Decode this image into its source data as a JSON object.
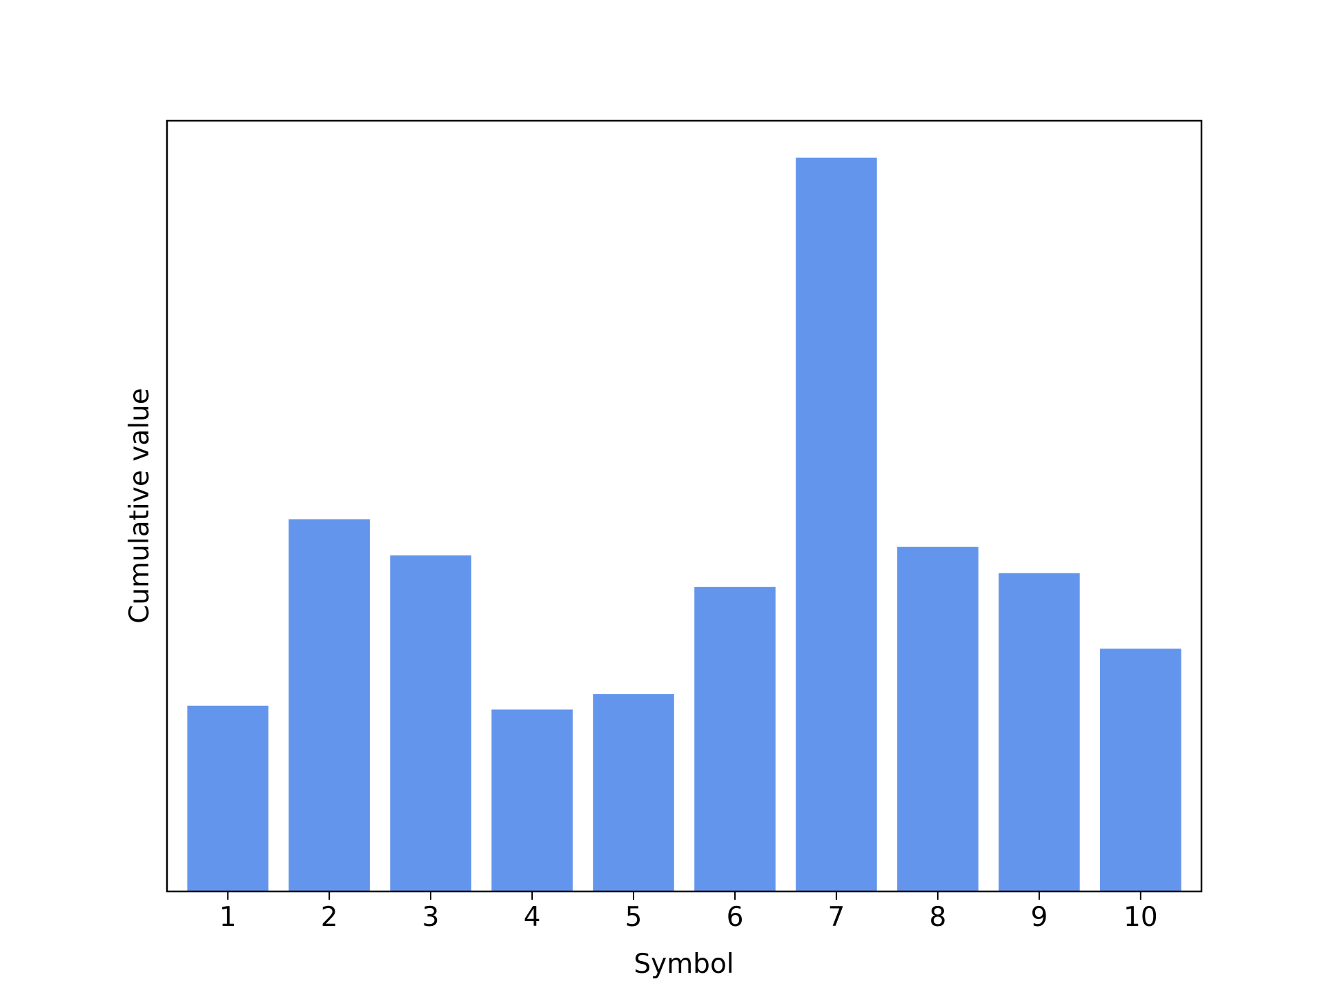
{
  "chart_data": {
    "type": "bar",
    "categories": [
      "1",
      "2",
      "3",
      "4",
      "5",
      "6",
      "7",
      "8",
      "9",
      "10"
    ],
    "values": [
      2.41,
      4.83,
      4.36,
      2.36,
      2.56,
      3.95,
      9.52,
      4.47,
      4.13,
      3.15
    ],
    "xlabel": "Symbol",
    "ylabel": "Cumulative value",
    "ylim": [
      0,
      10
    ],
    "y_ticks_visible": false,
    "grid": false,
    "legend": "none",
    "bar_color": "#6495ED"
  }
}
